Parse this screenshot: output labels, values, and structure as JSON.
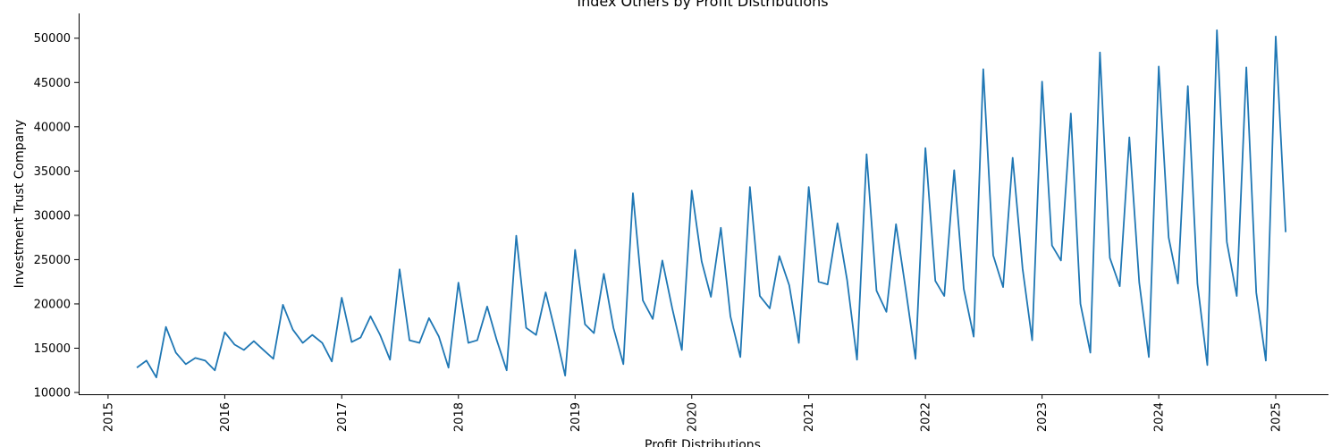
{
  "chart_data": {
    "type": "line",
    "title": "Index Others by Profit Distributions",
    "xlabel": "Profit Distributions",
    "ylabel": "Investment Trust Company",
    "xlim": [
      "2014-10-01",
      "2025-06-15"
    ],
    "ylim": [
      9800,
      52800
    ],
    "x_ticks": [
      {
        "date": "2015-01-01",
        "label": "2015"
      },
      {
        "date": "2016-01-01",
        "label": "2016"
      },
      {
        "date": "2017-01-01",
        "label": "2017"
      },
      {
        "date": "2018-01-01",
        "label": "2018"
      },
      {
        "date": "2019-01-01",
        "label": "2019"
      },
      {
        "date": "2020-01-01",
        "label": "2020"
      },
      {
        "date": "2021-01-01",
        "label": "2021"
      },
      {
        "date": "2022-01-01",
        "label": "2022"
      },
      {
        "date": "2023-01-01",
        "label": "2023"
      },
      {
        "date": "2024-01-01",
        "label": "2024"
      },
      {
        "date": "2025-01-01",
        "label": "2025"
      }
    ],
    "y_ticks": [
      {
        "value": 10000,
        "label": "10000"
      },
      {
        "value": 15000,
        "label": "15000"
      },
      {
        "value": 20000,
        "label": "20000"
      },
      {
        "value": 25000,
        "label": "25000"
      },
      {
        "value": 30000,
        "label": "30000"
      },
      {
        "value": 35000,
        "label": "35000"
      },
      {
        "value": 40000,
        "label": "40000"
      },
      {
        "value": 45000,
        "label": "45000"
      },
      {
        "value": 50000,
        "label": "50000"
      }
    ],
    "grid": false,
    "line_color": "#1f77b4",
    "series": [
      {
        "x": [
          "2015-04-01",
          "2015-05-01",
          "2015-06-01",
          "2015-07-01",
          "2015-08-01",
          "2015-09-01",
          "2015-10-01",
          "2015-11-01",
          "2015-12-01",
          "2016-01-01",
          "2016-02-01",
          "2016-03-01",
          "2016-04-01",
          "2016-05-01",
          "2016-06-01",
          "2016-07-01",
          "2016-08-01",
          "2016-09-01",
          "2016-10-01",
          "2016-11-01",
          "2016-12-01",
          "2017-01-01",
          "2017-02-01",
          "2017-03-01",
          "2017-04-01",
          "2017-05-01",
          "2017-06-01",
          "2017-07-01",
          "2017-08-01",
          "2017-09-01",
          "2017-10-01",
          "2017-11-01",
          "2017-12-01",
          "2018-01-01",
          "2018-02-01",
          "2018-03-01",
          "2018-04-01",
          "2018-05-01",
          "2018-06-01",
          "2018-07-01",
          "2018-08-01",
          "2018-09-01",
          "2018-10-01",
          "2018-11-01",
          "2018-12-01",
          "2019-01-01",
          "2019-02-01",
          "2019-03-01",
          "2019-04-01",
          "2019-05-01",
          "2019-06-01",
          "2019-07-01",
          "2019-08-01",
          "2019-09-01",
          "2019-10-01",
          "2019-11-01",
          "2019-12-01",
          "2020-01-01",
          "2020-02-01",
          "2020-03-01",
          "2020-04-01",
          "2020-05-01",
          "2020-06-01",
          "2020-07-01",
          "2020-08-01",
          "2020-09-01",
          "2020-10-01",
          "2020-11-01",
          "2020-12-01",
          "2021-01-01",
          "2021-02-01",
          "2021-03-01",
          "2021-04-01",
          "2021-05-01",
          "2021-06-01",
          "2021-07-01",
          "2021-08-01",
          "2021-09-01",
          "2021-10-01",
          "2021-11-01",
          "2021-12-01",
          "2022-01-01",
          "2022-02-01",
          "2022-03-01",
          "2022-04-01",
          "2022-05-01",
          "2022-06-01",
          "2022-07-01",
          "2022-08-01",
          "2022-09-01",
          "2022-10-01",
          "2022-11-01",
          "2022-12-01",
          "2023-01-01",
          "2023-02-01",
          "2023-03-01",
          "2023-04-01",
          "2023-05-01",
          "2023-06-01",
          "2023-07-01",
          "2023-08-01",
          "2023-09-01",
          "2023-10-01",
          "2023-11-01",
          "2023-12-01",
          "2024-01-01",
          "2024-02-01",
          "2024-03-01",
          "2024-04-01",
          "2024-05-01",
          "2024-06-01",
          "2024-07-01",
          "2024-08-01",
          "2024-09-01",
          "2024-10-01",
          "2024-11-01",
          "2024-12-01",
          "2025-01-01",
          "2025-02-01"
        ],
        "values": [
          12800,
          13600,
          11700,
          17400,
          14500,
          13200,
          13900,
          13600,
          12500,
          16800,
          15400,
          14800,
          15800,
          14800,
          13800,
          19900,
          17100,
          15600,
          16500,
          15600,
          13500,
          20700,
          15700,
          16200,
          18600,
          16500,
          13700,
          23900,
          15900,
          15600,
          18400,
          16300,
          12800,
          22400,
          15600,
          15900,
          19700,
          15900,
          12500,
          27700,
          17300,
          16500,
          21300,
          16700,
          11900,
          26100,
          17700,
          16700,
          23400,
          17300,
          13200,
          32500,
          20400,
          18300,
          24900,
          19500,
          14800,
          32800,
          24800,
          20800,
          28600,
          18600,
          14000,
          33200,
          20900,
          19500,
          25400,
          22100,
          15600,
          33200,
          22500,
          22200,
          29100,
          22700,
          13700,
          36900,
          21500,
          19100,
          29000,
          21500,
          13800,
          37600,
          22600,
          20900,
          35100,
          21700,
          16300,
          46500,
          25500,
          21900,
          36500,
          24000,
          15900,
          45100,
          26600,
          24900,
          41500,
          20000,
          14500,
          48400,
          25200,
          22000,
          38800,
          22400,
          14000,
          46800,
          27500,
          22300,
          44600,
          22300,
          13100,
          50900,
          27000,
          20900,
          46700,
          21300,
          13600,
          50200,
          28100
        ]
      }
    ]
  }
}
